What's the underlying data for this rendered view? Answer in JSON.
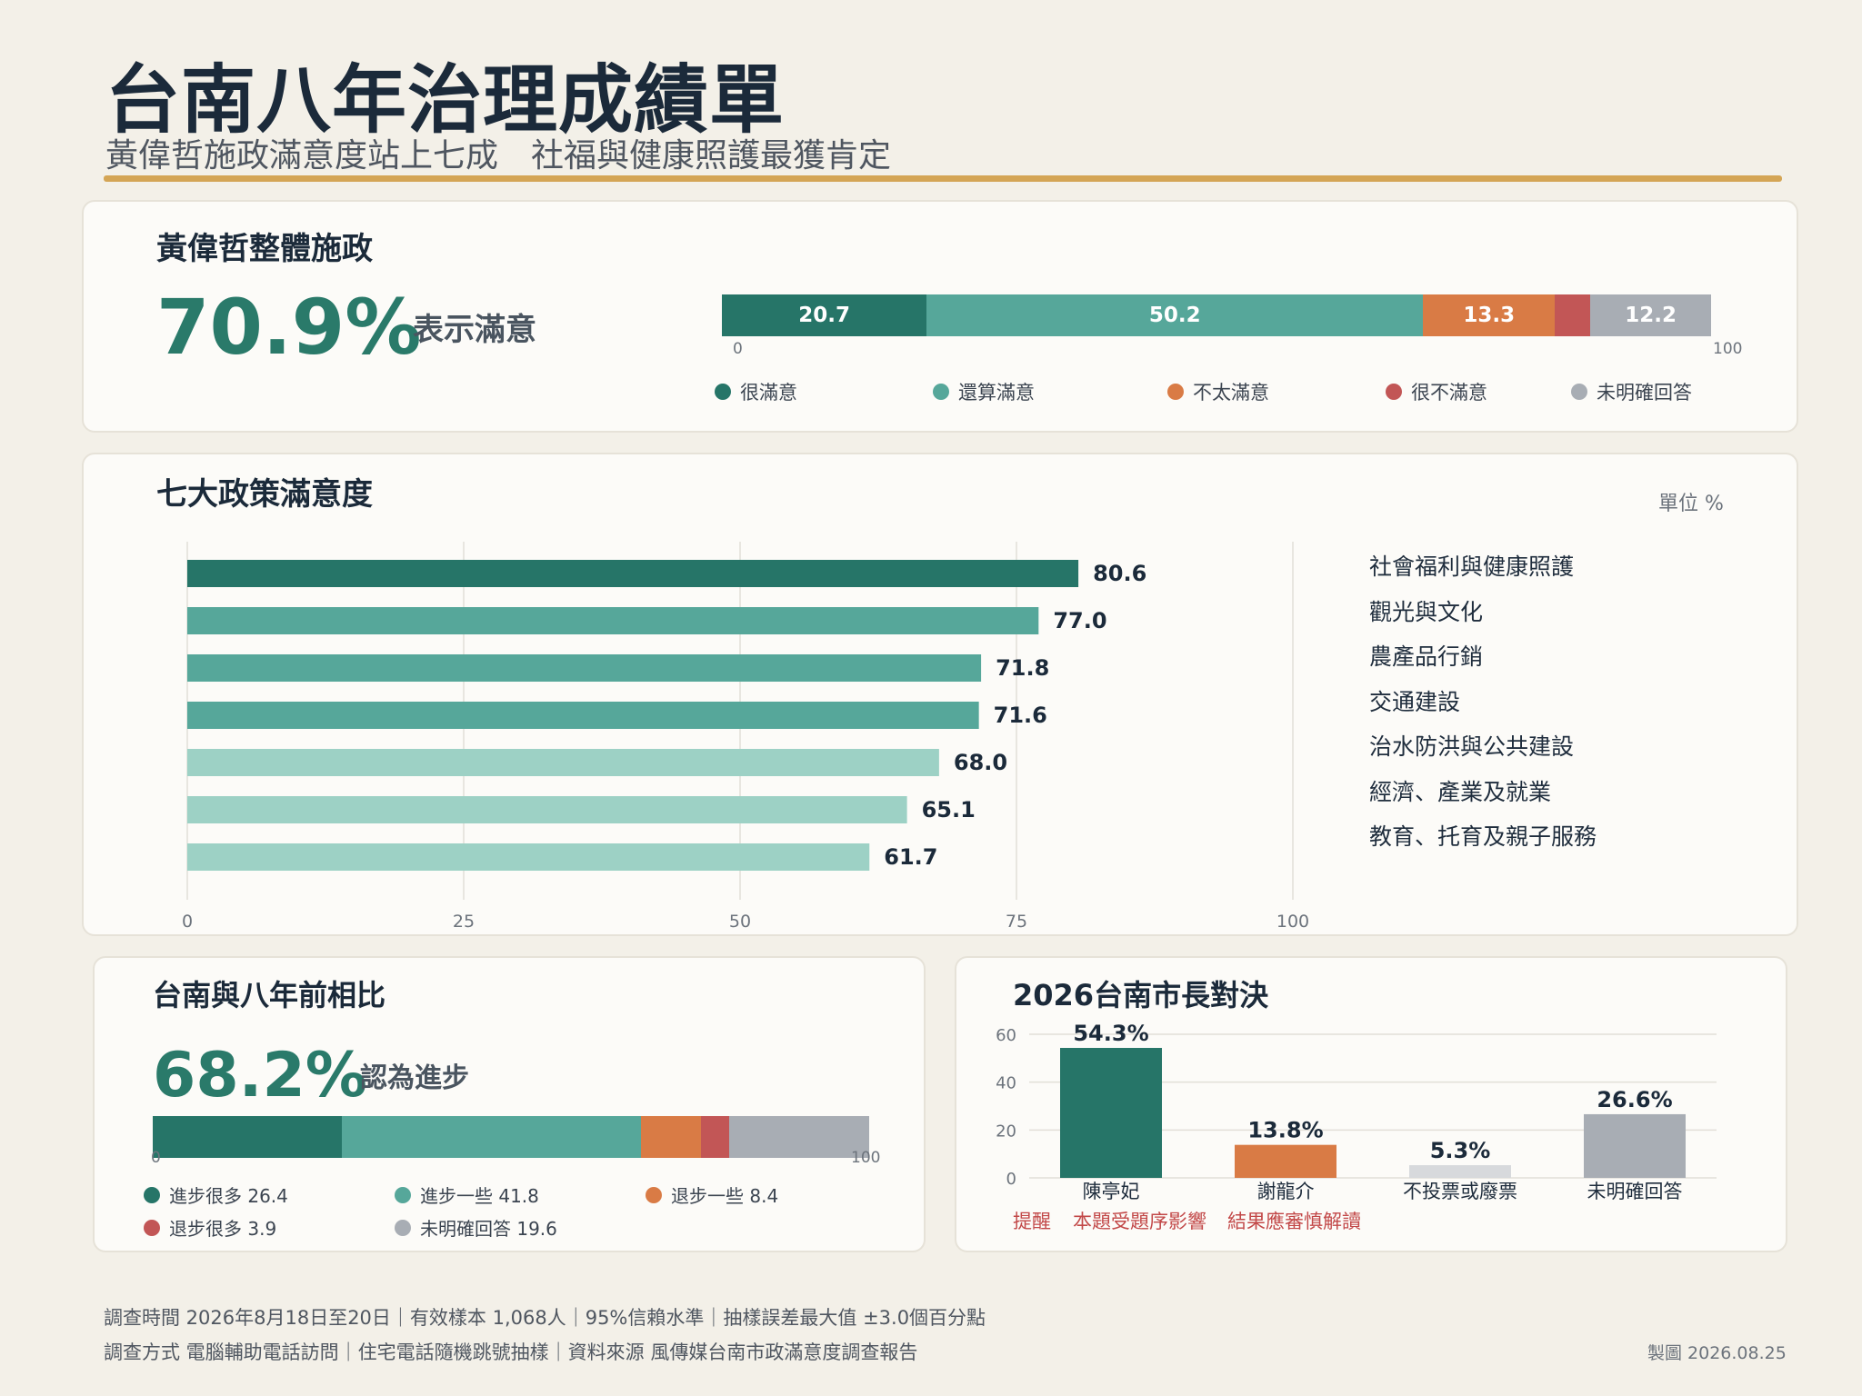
{
  "header": {
    "title": "台南八年治理成績單",
    "subtitle": "黃偉哲施政滿意度站上七成　社福與健康照護最獲肯定"
  },
  "overall": {
    "heading": "黃偉哲整體施政",
    "big_value": "70.9%",
    "big_label": "表示滿意",
    "axis_min": "0",
    "axis_max": "100",
    "segments": [
      {
        "label": "很滿意",
        "value": 20.7,
        "display": "20.7",
        "color": "#267568"
      },
      {
        "label": "還算滿意",
        "value": 50.2,
        "display": "50.2",
        "color": "#56a79a"
      },
      {
        "label": "不太滿意",
        "value": 13.3,
        "display": "13.3",
        "color": "#d97b45"
      },
      {
        "label": "很不滿意",
        "value": 3.6,
        "display": "",
        "color": "#c25656"
      },
      {
        "label": "未明確回答",
        "value": 12.2,
        "display": "12.2",
        "color": "#a8adb4"
      }
    ]
  },
  "policies": {
    "heading": "七大政策滿意度",
    "unit": "單位 %",
    "categories": [
      "社會福利與健康照護",
      "觀光與文化",
      "農產品行銷",
      "交通建設",
      "治水防洪與公共建設",
      "經濟、產業及就業",
      "教育、托育及親子服務"
    ]
  },
  "compare": {
    "heading": "台南與八年前相比",
    "big_value": "68.2%",
    "big_label": "認為進步",
    "axis_min": "0",
    "axis_max": "100",
    "legend": [
      {
        "text": "進步很多 26.4",
        "color": "#267568"
      },
      {
        "text": "進步一些 41.8",
        "color": "#56a79a"
      },
      {
        "text": "退步一些 8.4",
        "color": "#d97b45"
      },
      {
        "text": "退步很多 3.9",
        "color": "#c25656"
      },
      {
        "text": "未明確回答 19.6",
        "color": "#a8adb4"
      }
    ]
  },
  "race": {
    "heading": "2026台南市長對決",
    "note_prefix": "提醒",
    "note_1": "本題受題序影響",
    "note_2": "結果應審慎解讀"
  },
  "footer": {
    "line1": "調查時間 2026年8月18日至20日｜有效樣本 1,068人｜95%信賴水準｜抽樣誤差最大值 ±3.0個百分點",
    "line2": "調查方式 電腦輔助電話訪問｜住宅電話隨機跳號抽樣｜資料來源 風傳媒台南市政滿意度調查報告",
    "credit": "製圖 2026.08.25"
  },
  "colors": {
    "dark_teal": "#267568",
    "teal": "#56a79a",
    "light_teal": "#9dd1c5",
    "orange": "#d97b45",
    "red": "#c25656",
    "grey": "#a8adb4",
    "light_grey": "#d7d9dc",
    "gold": "#d4a555"
  },
  "chart_data": [
    {
      "type": "bar",
      "orientation": "horizontal-stacked",
      "title": "黃偉哲整體施政",
      "series": [
        {
          "name": "很滿意",
          "values": [
            20.7
          ]
        },
        {
          "name": "還算滿意",
          "values": [
            50.2
          ]
        },
        {
          "name": "不太滿意",
          "values": [
            13.3
          ]
        },
        {
          "name": "很不滿意",
          "values": [
            3.6
          ]
        },
        {
          "name": "未明確回答",
          "values": [
            12.2
          ]
        }
      ],
      "xlim": [
        0,
        100
      ]
    },
    {
      "type": "bar",
      "orientation": "horizontal",
      "title": "七大政策滿意度",
      "categories": [
        "社會福利與健康照護",
        "觀光與文化",
        "農產品行銷",
        "交通建設",
        "治水防洪與公共建設",
        "經濟、產業及就業",
        "教育、托育及親子服務"
      ],
      "values": [
        80.6,
        77.0,
        71.8,
        71.6,
        68.0,
        65.1,
        61.7
      ],
      "labels": [
        "80.6",
        "77.0",
        "71.8",
        "71.6",
        "68.0",
        "65.1",
        "61.7"
      ],
      "bar_colors": [
        "#267568",
        "#56a79a",
        "#56a79a",
        "#56a79a",
        "#9dd1c5",
        "#9dd1c5",
        "#9dd1c5"
      ],
      "xticks": [
        0,
        25,
        50,
        75,
        100
      ],
      "xlim": [
        0,
        100
      ],
      "grid": true
    },
    {
      "type": "bar",
      "orientation": "horizontal-stacked",
      "title": "台南與八年前相比",
      "series": [
        {
          "name": "進步很多",
          "values": [
            26.4
          ]
        },
        {
          "name": "進步一些",
          "values": [
            41.8
          ]
        },
        {
          "name": "退步一些",
          "values": [
            8.4
          ]
        },
        {
          "name": "退步很多",
          "values": [
            3.9
          ]
        },
        {
          "name": "未明確回答",
          "values": [
            19.6
          ]
        }
      ],
      "xlim": [
        0,
        100
      ]
    },
    {
      "type": "bar",
      "title": "2026台南市長對決",
      "categories": [
        "陳亭妃",
        "謝龍介",
        "不投票或廢票",
        "未明確回答"
      ],
      "values": [
        54.3,
        13.8,
        5.3,
        26.6
      ],
      "labels": [
        "54.3%",
        "13.8%",
        "5.3%",
        "26.6%"
      ],
      "bar_colors": [
        "#267568",
        "#d97b45",
        "#d7d9dc",
        "#a8adb4"
      ],
      "yticks": [
        0,
        20,
        40,
        60
      ],
      "ylim": [
        0,
        60
      ],
      "grid": true
    }
  ]
}
